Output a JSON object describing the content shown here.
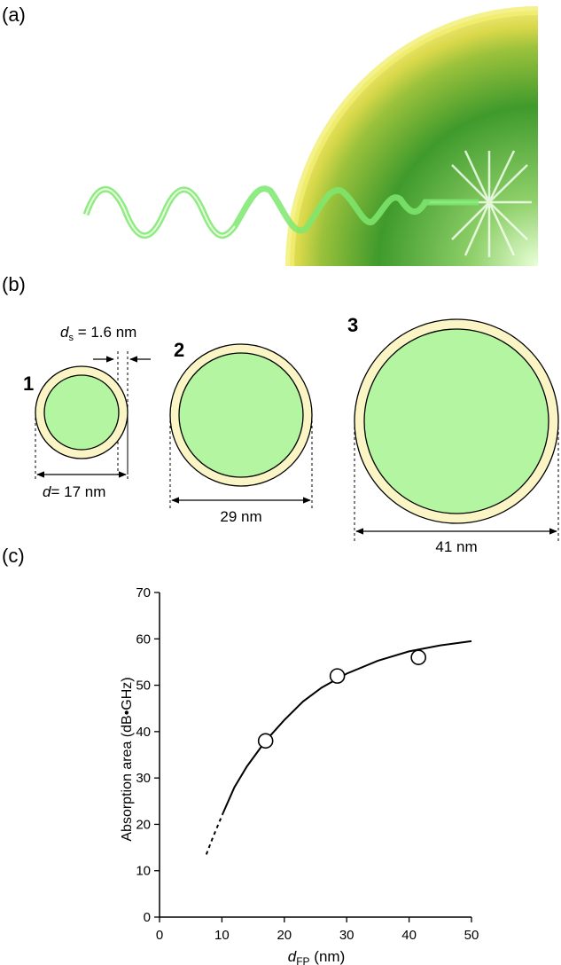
{
  "panels": {
    "a": "(a)",
    "b": "(b)",
    "c": "(c)"
  },
  "illustration": {
    "description_icon": "em-wave-absorbed-by-particle"
  },
  "particles": {
    "shell_label_main": "d",
    "shell_label_sub": "s",
    "shell_label_value": " = 1.6 nm",
    "items": [
      {
        "number": "1",
        "dim_prefix": "d",
        "dim_text": "= 17 nm"
      },
      {
        "number": "2",
        "dim_prefix": "",
        "dim_text": "29 nm"
      },
      {
        "number": "3",
        "dim_prefix": "",
        "dim_text": "41 nm"
      }
    ],
    "colors": {
      "core": "#b3f5a0",
      "shell": "#fbf5c6",
      "outline": "#000000"
    }
  },
  "chart_data": {
    "type": "scatter",
    "title": "",
    "xlabel_main": "d",
    "xlabel_sub": "FP",
    "xlabel_unit": " (nm)",
    "ylabel": "Absorption area (dB•GHz)",
    "xlim": [
      0,
      50
    ],
    "ylim": [
      0,
      70
    ],
    "xticks": [
      0,
      10,
      20,
      30,
      40,
      50
    ],
    "yticks": [
      0,
      10,
      20,
      30,
      40,
      50,
      60,
      70
    ],
    "grid": false,
    "points": [
      {
        "x": 17,
        "y": 38
      },
      {
        "x": 28.5,
        "y": 52
      },
      {
        "x": 41.5,
        "y": 56
      }
    ],
    "fit_curve_solid": [
      [
        10.2,
        22.5
      ],
      [
        12,
        28
      ],
      [
        14,
        32.5
      ],
      [
        17,
        38
      ],
      [
        20,
        42.5
      ],
      [
        23,
        46.5
      ],
      [
        26,
        49.5
      ],
      [
        30,
        52.5
      ],
      [
        35,
        55.3
      ],
      [
        40,
        57.3
      ],
      [
        45,
        58.6
      ],
      [
        50,
        59.5
      ]
    ],
    "fit_curve_dashed": [
      [
        7.5,
        13.5
      ],
      [
        8.5,
        17
      ],
      [
        10.2,
        22.5
      ]
    ]
  }
}
